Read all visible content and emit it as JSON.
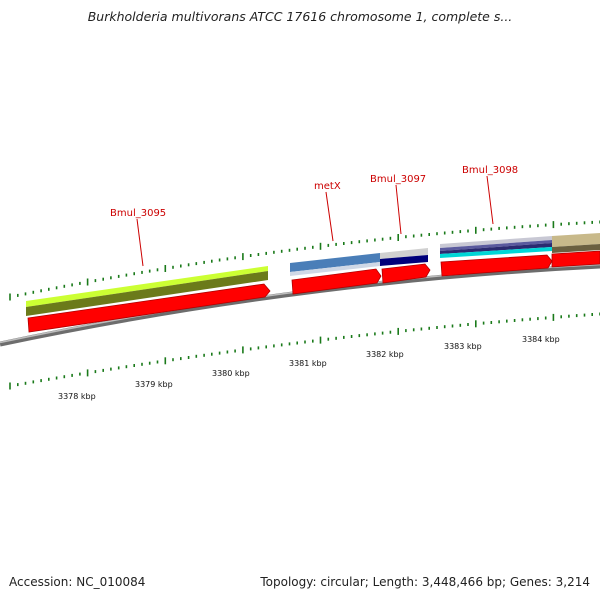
{
  "title": "Burkholderia multivorans ATCC 17616 chromosome 1, complete s...",
  "accession_label": "Accession: NC_010084",
  "topology_label": "Topology: circular; Length: 3,448,466 bp; Genes: 3,214",
  "genes": [
    {
      "name": "Bmul_3095",
      "label": "Bmul_3095",
      "colors": [
        "#ccff33",
        "#6b7a1a"
      ]
    },
    {
      "name": "metX",
      "label": "metX",
      "colors": [
        "#4a7eb8",
        "#cfd8e6"
      ]
    },
    {
      "name": "Bmul_3097",
      "label": "Bmul_3097",
      "colors": [
        "#00007a",
        "#d0d0d0"
      ]
    },
    {
      "name": "Bmul_3098",
      "label": "Bmul_3098",
      "colors": [
        "#5a5a9e",
        "#00d6d6"
      ]
    },
    {
      "name": "next-gene",
      "label": "",
      "colors": [
        "#c8b98a",
        "#6b6040"
      ]
    }
  ],
  "kbp_ticks": [
    {
      "label": "3378 kbp"
    },
    {
      "label": "3379 kbp"
    },
    {
      "label": "3380 kbp"
    },
    {
      "label": "3381 kbp"
    },
    {
      "label": "3382 kbp"
    },
    {
      "label": "3383 kbp"
    },
    {
      "label": "3384 kbp"
    }
  ],
  "colors": {
    "backbone": "#888888",
    "cds": "#ff0000",
    "label": "#cc0000",
    "tick": "#1a7a1a"
  }
}
